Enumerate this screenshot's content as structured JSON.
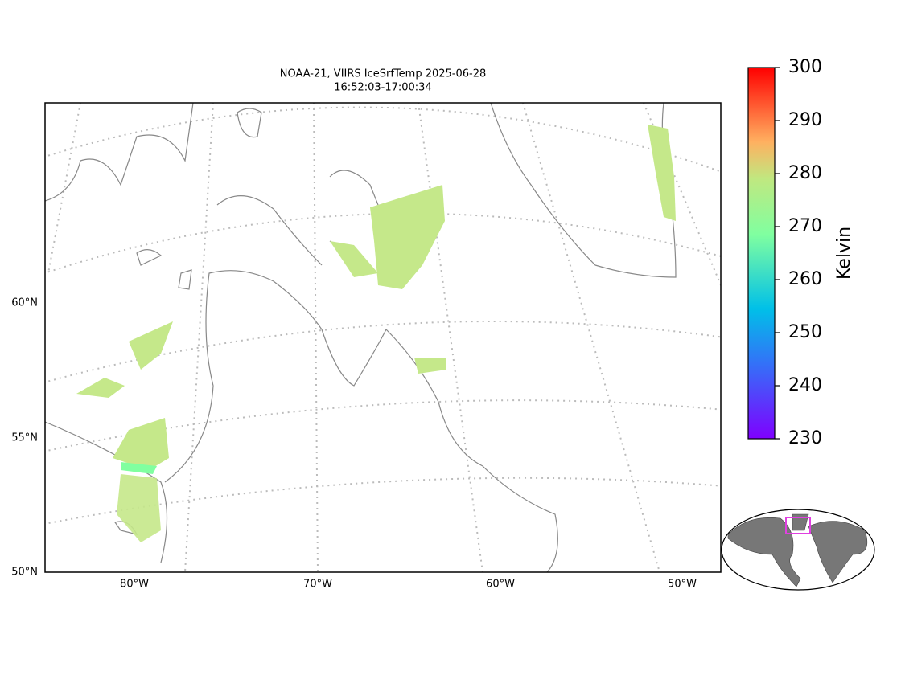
{
  "title": "NOAA-21, VIIRS IceSrfTemp 2025-06-28",
  "subtitle": "16:52:03-17:00:34",
  "map": {
    "lat_labels": [
      "60°N",
      "55°N",
      "50°N"
    ],
    "lon_labels": [
      "80°W",
      "70°W",
      "60°W",
      "50°W"
    ]
  },
  "colorbar": {
    "label": "Kelvin",
    "lim": [
      230,
      300
    ],
    "ticks": [
      230,
      240,
      250,
      260,
      270,
      280,
      290,
      300
    ]
  }
}
